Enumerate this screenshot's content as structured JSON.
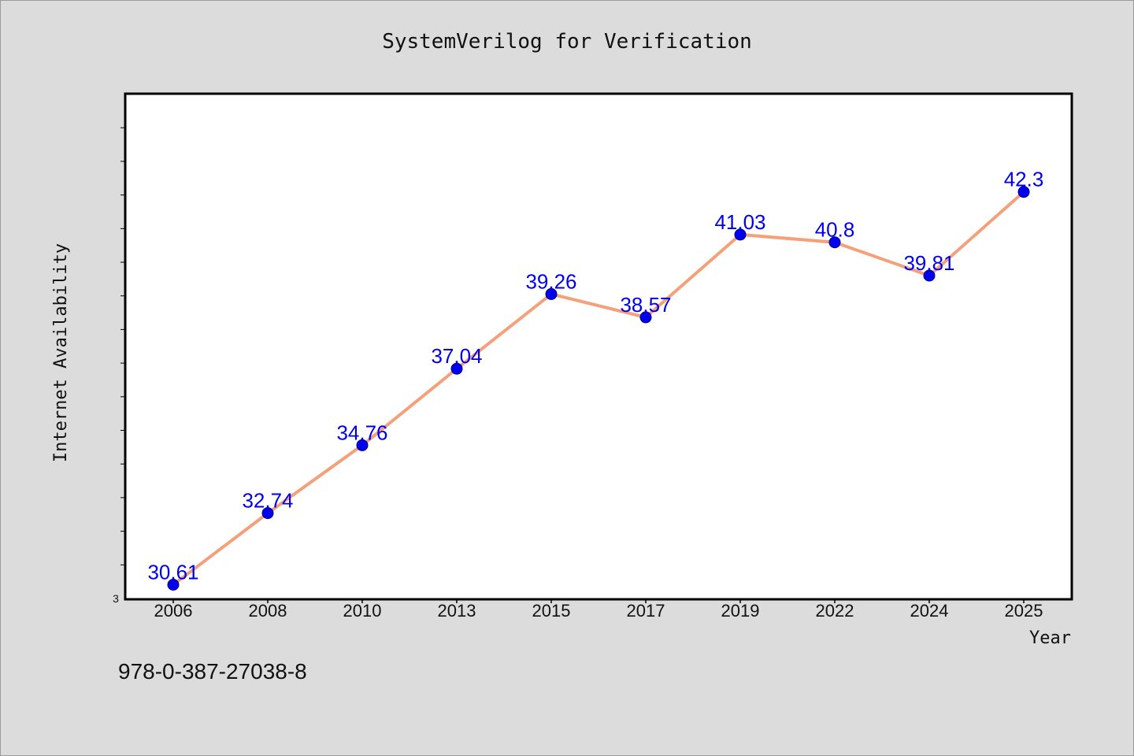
{
  "chart_data": {
    "type": "line",
    "title": "SystemVerilog for Verification",
    "xlabel": "Year",
    "ylabel": "Internet Availability",
    "categories": [
      "2006",
      "2008",
      "2010",
      "2013",
      "2015",
      "2017",
      "2019",
      "2022",
      "2024",
      "2025"
    ],
    "series": [
      {
        "values": [
          30.61,
          32.74,
          34.76,
          37.04,
          39.26,
          38.57,
          41.03,
          40.8,
          39.81,
          42.3
        ],
        "data_labels": [
          "30.61",
          "32.74",
          "34.76",
          "37.04",
          "39.26",
          "38.57",
          "41.03",
          "40.8",
          "39.81",
          "42.3"
        ]
      }
    ],
    "ylim": [
      30.2,
      45.2
    ],
    "y_min_label": "3",
    "grid": false,
    "legend": "none"
  },
  "footnote": "978-0-387-27038-8",
  "colors": {
    "background": "#dcdcdc",
    "plot_background": "#ffffff",
    "line": "#f4a07a",
    "marker": "#0000ee",
    "marker_edge": "#000080",
    "data_label": "#0000ee",
    "axis": "#000000"
  }
}
